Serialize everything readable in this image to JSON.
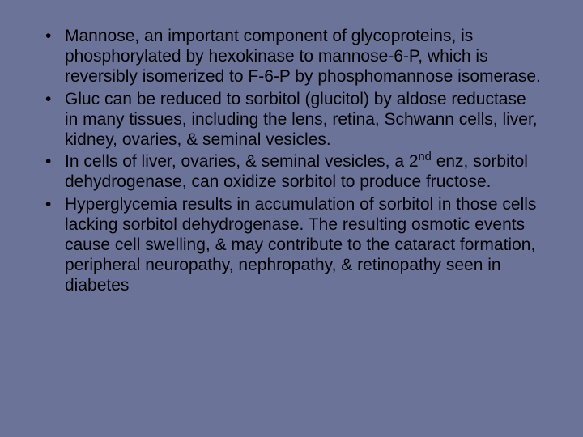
{
  "slide": {
    "background_color": "#6b7399",
    "text_color": "#000000",
    "font_family": "Arial",
    "font_size_pt": 16,
    "bullets": [
      "Mannose, an important component of glycoproteins, is phosphorylated by hexokinase to mannose-6-P, which is reversibly isomerized to F-6-P by phosphomannose isomerase.",
      "Gluc can be reduced to sorbitol (glucitol) by aldose reductase in many tissues, including the lens, retina, Schwann cells, liver, kidney, ovaries, & seminal vesicles.",
      "In cells of liver, ovaries, & seminal vesicles, a 2nd enz, sorbitol dehydrogenase, can oxidize sorbitol to produce fructose.",
      "Hyperglycemia results in accumulation of sorbitol in those cells lacking sorbitol dehydrogenase. The resulting osmotic events cause cell swelling, & may contribute to the cataract formation, peripheral neuropathy, nephropathy, & retinopathy seen in diabetes"
    ],
    "bullet_2_superscript_index": 2,
    "bullet_2_prefix": "In cells of liver, ovaries, & seminal vesicles, a 2",
    "bullet_2_sup": "nd",
    "bullet_2_suffix": " enz, sorbitol dehydrogenase, can oxidize sorbitol to produce fructose."
  }
}
